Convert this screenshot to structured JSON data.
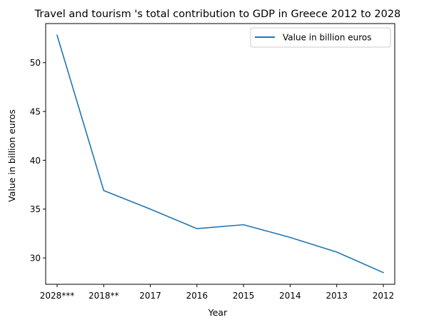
{
  "chart_data": {
    "type": "line",
    "title": "Travel and tourism 's total contribution to GDP in Greece 2012 to 2028",
    "xlabel": "Year",
    "ylabel": "Value in billion euros",
    "categories": [
      "2028***",
      "2018**",
      "2017",
      "2016",
      "2015",
      "2014",
      "2013",
      "2012"
    ],
    "series": [
      {
        "name": "Value in billion euros",
        "color": "#1f77b4",
        "values": [
          52.8,
          36.9,
          35.0,
          33.0,
          33.4,
          32.1,
          30.6,
          28.5
        ]
      }
    ],
    "ylim": [
      27.3,
      54.0
    ],
    "yticks": [
      30,
      35,
      40,
      45,
      50
    ],
    "grid": false,
    "legend_position": "top-right"
  }
}
